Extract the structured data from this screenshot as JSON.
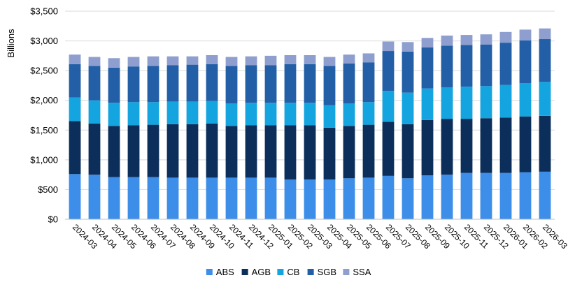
{
  "chart_data": {
    "type": "bar",
    "stacked": true,
    "ylabel": "Billions",
    "xlabel": "",
    "ylim": [
      0,
      3500
    ],
    "y_ticks": [
      "$0",
      "$500",
      "$1,000",
      "$1,500",
      "$2,000",
      "$2,500",
      "$3,000",
      "$3,500"
    ],
    "y_tick_values": [
      0,
      500,
      1000,
      1500,
      2000,
      2500,
      3000,
      3500
    ],
    "grid": true,
    "legend_position": "bottom",
    "categories": [
      "2024-03",
      "2024-04",
      "2024-05",
      "2024-06",
      "2024-07",
      "2024-08",
      "2024-09",
      "2024-10",
      "2024-11",
      "2024-12",
      "2025-01",
      "2025-02",
      "2025-03",
      "2025-04",
      "2025-05",
      "2025-06",
      "2025-07",
      "2025-08",
      "2025-09",
      "2025-10",
      "2025-11",
      "2025-12",
      "2026-01",
      "2026-02",
      "2026-03"
    ],
    "series": [
      {
        "name": "ABS",
        "color": "#3c8ee8",
        "values": [
          760,
          750,
          710,
          710,
          710,
          700,
          700,
          700,
          700,
          700,
          700,
          670,
          670,
          670,
          690,
          700,
          730,
          690,
          740,
          750,
          780,
          780,
          780,
          790,
          800
        ]
      },
      {
        "name": "AGB",
        "color": "#0c2e5a",
        "values": [
          890,
          860,
          860,
          870,
          880,
          900,
          900,
          910,
          870,
          880,
          880,
          910,
          910,
          870,
          880,
          890,
          910,
          910,
          930,
          940,
          910,
          920,
          930,
          940,
          940
        ]
      },
      {
        "name": "CB",
        "color": "#14a5e0",
        "values": [
          400,
          390,
          390,
          390,
          380,
          380,
          380,
          380,
          380,
          380,
          380,
          380,
          380,
          380,
          380,
          380,
          520,
          530,
          530,
          530,
          540,
          540,
          550,
          560,
          570
        ]
      },
      {
        "name": "SGB",
        "color": "#235fa6",
        "values": [
          560,
          580,
          590,
          600,
          610,
          610,
          620,
          620,
          630,
          630,
          630,
          650,
          650,
          660,
          670,
          670,
          670,
          690,
          690,
          700,
          700,
          700,
          710,
          720,
          720
        ]
      },
      {
        "name": "SSA",
        "color": "#8e9fcf",
        "values": [
          160,
          150,
          160,
          160,
          160,
          150,
          140,
          150,
          150,
          150,
          160,
          150,
          150,
          150,
          150,
          150,
          160,
          160,
          160,
          170,
          170,
          170,
          180,
          180,
          180
        ]
      }
    ]
  }
}
